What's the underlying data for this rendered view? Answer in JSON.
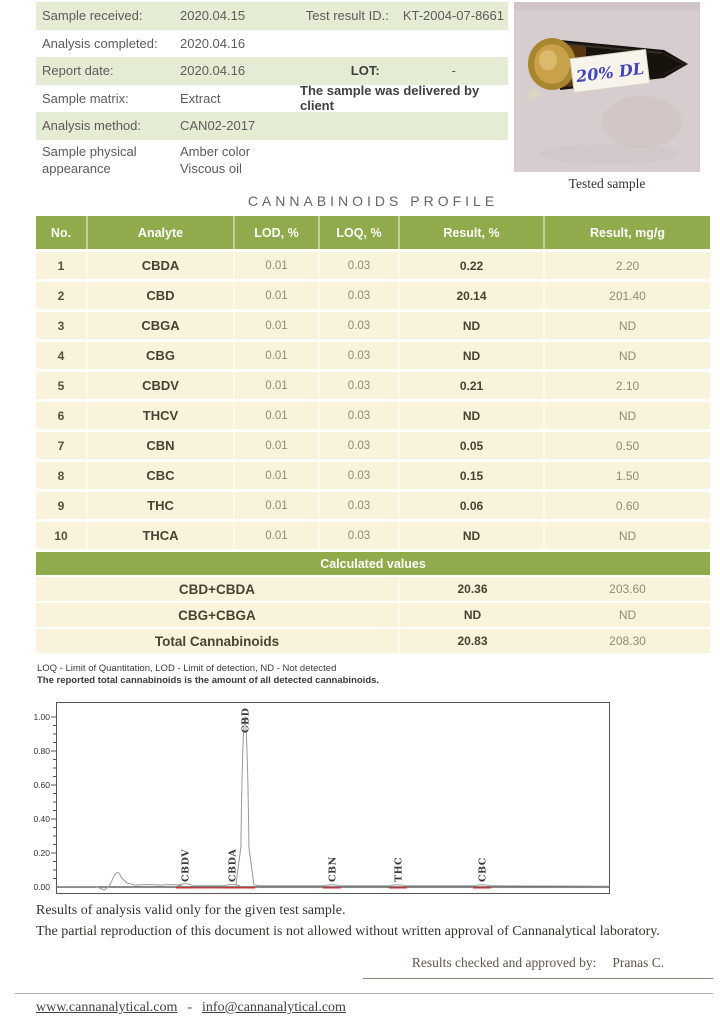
{
  "sample_info": {
    "sample_received_label": "Sample received:",
    "sample_received": "2020.04.15",
    "test_result_id_label": "Test result ID.:",
    "test_result_id": "KT-2004-07-8661",
    "analysis_completed_label": "Analysis completed:",
    "analysis_completed": "2020.04.16",
    "report_date_label": "Report date:",
    "report_date": "2020.04.16",
    "lot_label": "LOT:",
    "lot": "-",
    "sample_matrix_label": "Sample matrix:",
    "sample_matrix": "Extract",
    "delivery_note": "The sample was delivered by client",
    "analysis_method_label": "Analysis method:",
    "analysis_method": "CAN02-2017",
    "appearance_label_line1": "Sample physical",
    "appearance_label_line2": "appearance",
    "appearance_value_line1": "Amber color",
    "appearance_value_line2": "Viscous oil"
  },
  "photo": {
    "caption": "Tested sample",
    "label_text": "20% DL"
  },
  "profile_table": {
    "title": "CANNABINOIDS PROFILE",
    "headers": [
      "No.",
      "Analyte",
      "LOD, %",
      "LOQ, %",
      "Result, %",
      "Result, mg/g"
    ],
    "rows": [
      {
        "no": "1",
        "analyte": "CBDA",
        "lod": "0.01",
        "loq": "0.03",
        "result_pct": "0.22",
        "result_mgg": "2.20"
      },
      {
        "no": "2",
        "analyte": "CBD",
        "lod": "0.01",
        "loq": "0.03",
        "result_pct": "20.14",
        "result_mgg": "201.40"
      },
      {
        "no": "3",
        "analyte": "CBGA",
        "lod": "0.01",
        "loq": "0.03",
        "result_pct": "ND",
        "result_mgg": "ND"
      },
      {
        "no": "4",
        "analyte": "CBG",
        "lod": "0.01",
        "loq": "0.03",
        "result_pct": "ND",
        "result_mgg": "ND"
      },
      {
        "no": "5",
        "analyte": "CBDV",
        "lod": "0.01",
        "loq": "0.03",
        "result_pct": "0.21",
        "result_mgg": "2.10"
      },
      {
        "no": "6",
        "analyte": "THCV",
        "lod": "0.01",
        "loq": "0.03",
        "result_pct": "ND",
        "result_mgg": "ND"
      },
      {
        "no": "7",
        "analyte": "CBN",
        "lod": "0.01",
        "loq": "0.03",
        "result_pct": "0.05",
        "result_mgg": "0.50"
      },
      {
        "no": "8",
        "analyte": "CBC",
        "lod": "0.01",
        "loq": "0.03",
        "result_pct": "0.15",
        "result_mgg": "1.50"
      },
      {
        "no": "9",
        "analyte": "THC",
        "lod": "0.01",
        "loq": "0.03",
        "result_pct": "0.06",
        "result_mgg": "0.60"
      },
      {
        "no": "10",
        "analyte": "THCA",
        "lod": "0.01",
        "loq": "0.03",
        "result_pct": "ND",
        "result_mgg": "ND"
      }
    ],
    "calculated": {
      "header": "Calculated values",
      "rows": [
        {
          "label": "CBD+CBDA",
          "result_pct": "20.36",
          "result_mgg": "203.60"
        },
        {
          "label": "CBG+CBGA",
          "result_pct": "ND",
          "result_mgg": "ND"
        },
        {
          "label": "Total Cannabinoids",
          "result_pct": "20.83",
          "result_mgg": "208.30"
        }
      ]
    }
  },
  "footnotes": {
    "line1": "LOQ - Limit of Quantitation, LOD - Limit of detection, ND - Not detected",
    "line2": "The reported total cannabinoids is the amount of all detected cannabinoids."
  },
  "chart_data": {
    "type": "line",
    "title": "",
    "xlabel": "",
    "ylabel": "",
    "ylim": [
      0,
      1.1
    ],
    "yticks": [
      0.0,
      0.2,
      0.4,
      0.6,
      0.8,
      1.0
    ],
    "minor_tick_step": 0.05,
    "grid": false,
    "legend": false,
    "peaks": [
      {
        "name": "solvent-front",
        "x": 0.112,
        "height": 0.11,
        "labeled": false
      },
      {
        "name": "CBDV",
        "x": 0.233,
        "height": 0.02,
        "labeled": true
      },
      {
        "name": "CBDA",
        "x": 0.318,
        "height": 0.012,
        "labeled": true
      },
      {
        "name": "CBD",
        "x": 0.341,
        "height": 1.0,
        "labeled": true
      },
      {
        "name": "CBN",
        "x": 0.498,
        "height": 0.008,
        "labeled": true
      },
      {
        "name": "THC",
        "x": 0.617,
        "height": 0.008,
        "labeled": true
      },
      {
        "name": "CBC",
        "x": 0.769,
        "height": 0.008,
        "labeled": true
      }
    ],
    "trace_color": "#9a9a9a",
    "integration_marker_color": "#cc3333"
  },
  "footer": {
    "validity": "Results of analysis valid only for the given test sample.",
    "reproduction": "The partial reproduction of this document is not allowed without written approval of Cannanalytical laboratory.",
    "approved_label": "Results checked and approved by:",
    "approved_name": "Pranas C.",
    "website": "www.cannanalytical.com",
    "separator": "-",
    "email": "info@cannanalytical.com"
  },
  "colors": {
    "table_header_green": "#8fab4c",
    "info_row_green": "#e4ecd4",
    "table_row_cream": "#faf3db",
    "integration_red": "#cc3333",
    "handwriting_blue": "#4444bb"
  }
}
